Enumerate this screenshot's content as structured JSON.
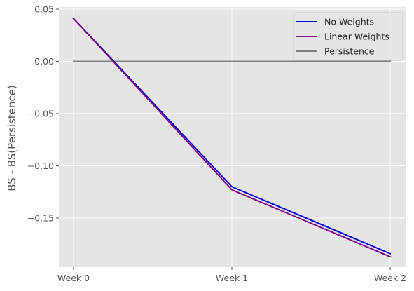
{
  "chart_data": {
    "type": "line",
    "title": "",
    "xlabel": "",
    "ylabel": "BS - BS(Persistence)",
    "categories": [
      "Week 0",
      "Week 1",
      "Week 2"
    ],
    "ylim": [
      -0.197,
      0.052
    ],
    "yticks": [
      0.05,
      0.0,
      -0.05,
      -0.1,
      -0.15
    ],
    "ytick_labels": [
      "0.05",
      "0.00",
      "−0.05",
      "−0.10",
      "−0.15"
    ],
    "grid": true,
    "legend_position": "top-right",
    "series": [
      {
        "name": "No Weights",
        "color": "#0000dd",
        "values": [
          0.041,
          -0.12,
          -0.184
        ]
      },
      {
        "name": "Linear Weights",
        "color": "#800080",
        "values": [
          0.041,
          -0.123,
          -0.187
        ]
      },
      {
        "name": "Persistence",
        "color": "#808080",
        "values": [
          0.0,
          0.0,
          0.0
        ]
      }
    ]
  }
}
